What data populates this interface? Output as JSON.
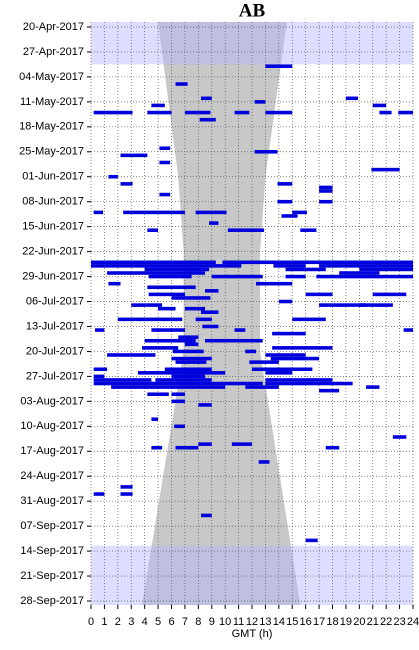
{
  "chart_data": {
    "type": "actogram",
    "title": "AB",
    "xlabel": "GMT (h)",
    "xlim": [
      0,
      24
    ],
    "xticks": [
      0,
      1,
      2,
      3,
      4,
      5,
      6,
      7,
      8,
      9,
      10,
      11,
      12,
      13,
      14,
      15,
      16,
      17,
      18,
      19,
      20,
      21,
      22,
      23,
      24
    ],
    "ylim": [
      "20-Apr-2017",
      "28-Sep-2017"
    ],
    "yticks": [
      "20-Apr-2017",
      "27-Apr-2017",
      "04-May-2017",
      "11-May-2017",
      "18-May-2017",
      "25-May-2017",
      "01-Jun-2017",
      "08-Jun-2017",
      "15-Jun-2017",
      "22-Jun-2017",
      "29-Jun-2017",
      "06-Jul-2017",
      "13-Jul-2017",
      "20-Jul-2017",
      "27-Jul-2017",
      "03-Aug-2017",
      "10-Aug-2017",
      "17-Aug-2017",
      "24-Aug-2017",
      "31-Aug-2017",
      "07-Sep-2017",
      "14-Sep-2017",
      "21-Sep-2017",
      "28-Sep-2017"
    ],
    "grid": true,
    "color": "#0000dd",
    "shade": {
      "color": "#c8c8c8",
      "dates": [
        "20-Apr-2017",
        "01-Jun-2017",
        "22-Jun-2017",
        "20-Jul-2017",
        "28-Sep-2017"
      ],
      "start": [
        5.0,
        6.5,
        6.9,
        6.9,
        3.8
      ],
      "end": [
        14.6,
        13.0,
        12.6,
        12.6,
        15.6
      ]
    },
    "bands": {
      "color": "#b4b4ff",
      "from": [
        "20-Apr-2017",
        "13-Sep-2017"
      ],
      "to": [
        "30-Apr-2017",
        "28-Sep-2017"
      ]
    },
    "events": [
      {
        "date": "01-May-2017",
        "start": 13.0,
        "end": 15.0
      },
      {
        "date": "06-May-2017",
        "start": 6.3,
        "end": 7.2
      },
      {
        "date": "10-May-2017",
        "start": 8.2,
        "end": 9.0
      },
      {
        "date": "10-May-2017",
        "start": 19.0,
        "end": 19.9
      },
      {
        "date": "11-May-2017",
        "start": 12.2,
        "end": 13.0
      },
      {
        "date": "12-May-2017",
        "start": 4.5,
        "end": 5.5
      },
      {
        "date": "12-May-2017",
        "start": 21.0,
        "end": 22.0
      },
      {
        "date": "14-May-2017",
        "start": 0.2,
        "end": 3.1
      },
      {
        "date": "14-May-2017",
        "start": 4.2,
        "end": 6.0
      },
      {
        "date": "14-May-2017",
        "start": 7.0,
        "end": 8.9
      },
      {
        "date": "14-May-2017",
        "start": 10.7,
        "end": 11.8
      },
      {
        "date": "14-May-2017",
        "start": 13.0,
        "end": 15.0
      },
      {
        "date": "14-May-2017",
        "start": 21.5,
        "end": 22.4
      },
      {
        "date": "14-May-2017",
        "start": 22.9,
        "end": 24.0
      },
      {
        "date": "16-May-2017",
        "start": 8.1,
        "end": 9.3
      },
      {
        "date": "24-May-2017",
        "start": 5.1,
        "end": 5.9
      },
      {
        "date": "25-May-2017",
        "start": 12.2,
        "end": 13.9
      },
      {
        "date": "26-May-2017",
        "start": 2.2,
        "end": 4.2
      },
      {
        "date": "28-May-2017",
        "start": 5.1,
        "end": 5.9
      },
      {
        "date": "30-May-2017",
        "start": 20.9,
        "end": 23.0
      },
      {
        "date": "01-Jun-2017",
        "start": 1.3,
        "end": 2.0
      },
      {
        "date": "03-Jun-2017",
        "start": 2.2,
        "end": 3.1
      },
      {
        "date": "03-Jun-2017",
        "start": 13.9,
        "end": 15.0
      },
      {
        "date": "04-Jun-2017",
        "start": 17.0,
        "end": 18.0
      },
      {
        "date": "05-Jun-2017",
        "start": 17.0,
        "end": 18.0
      },
      {
        "date": "06-Jun-2017",
        "start": 5.1,
        "end": 5.9
      },
      {
        "date": "08-Jun-2017",
        "start": 13.9,
        "end": 15.0
      },
      {
        "date": "08-Jun-2017",
        "start": 17.0,
        "end": 18.0
      },
      {
        "date": "11-Jun-2017",
        "start": 0.2,
        "end": 0.9
      },
      {
        "date": "11-Jun-2017",
        "start": 2.4,
        "end": 7.0
      },
      {
        "date": "11-Jun-2017",
        "start": 7.8,
        "end": 10.1
      },
      {
        "date": "11-Jun-2017",
        "start": 15.0,
        "end": 16.1
      },
      {
        "date": "12-Jun-2017",
        "start": 14.2,
        "end": 15.4
      },
      {
        "date": "14-Jun-2017",
        "start": 8.8,
        "end": 9.5
      },
      {
        "date": "16-Jun-2017",
        "start": 4.2,
        "end": 5.0
      },
      {
        "date": "16-Jun-2017",
        "start": 10.2,
        "end": 12.9
      },
      {
        "date": "16-Jun-2017",
        "start": 15.6,
        "end": 16.8
      },
      {
        "date": "25-Jun-2017",
        "start": 0.0,
        "end": 9.3
      },
      {
        "date": "25-Jun-2017",
        "start": 9.8,
        "end": 24.0
      },
      {
        "date": "26-Jun-2017",
        "start": 0.0,
        "end": 11.2
      },
      {
        "date": "26-Jun-2017",
        "start": 13.6,
        "end": 16.0
      },
      {
        "date": "26-Jun-2017",
        "start": 17.0,
        "end": 24.0
      },
      {
        "date": "27-Jun-2017",
        "start": 4.0,
        "end": 8.8
      },
      {
        "date": "27-Jun-2017",
        "start": 14.5,
        "end": 17.5
      },
      {
        "date": "27-Jun-2017",
        "start": 20.0,
        "end": 24.0
      },
      {
        "date": "28-Jun-2017",
        "start": 1.2,
        "end": 8.5
      },
      {
        "date": "28-Jun-2017",
        "start": 18.5,
        "end": 21.5
      },
      {
        "date": "29-Jun-2017",
        "start": 4.3,
        "end": 7.5
      },
      {
        "date": "29-Jun-2017",
        "start": 9.0,
        "end": 12.8
      },
      {
        "date": "29-Jun-2017",
        "start": 14.5,
        "end": 16.0
      },
      {
        "date": "29-Jun-2017",
        "start": 16.8,
        "end": 24.0
      },
      {
        "date": "01-Jul-2017",
        "start": 1.3,
        "end": 2.2
      },
      {
        "date": "01-Jul-2017",
        "start": 12.3,
        "end": 15.0
      },
      {
        "date": "02-Jul-2017",
        "start": 4.2,
        "end": 7.8
      },
      {
        "date": "03-Jul-2017",
        "start": 8.5,
        "end": 9.5
      },
      {
        "date": "04-Jul-2017",
        "start": 4.3,
        "end": 7.0
      },
      {
        "date": "04-Jul-2017",
        "start": 16.0,
        "end": 18.0
      },
      {
        "date": "04-Jul-2017",
        "start": 21.0,
        "end": 23.5
      },
      {
        "date": "05-Jul-2017",
        "start": 6.0,
        "end": 8.9
      },
      {
        "date": "06-Jul-2017",
        "start": 14.0,
        "end": 15.0
      },
      {
        "date": "07-Jul-2017",
        "start": 3.0,
        "end": 5.3
      },
      {
        "date": "07-Jul-2017",
        "start": 17.0,
        "end": 20.5
      },
      {
        "date": "07-Jul-2017",
        "start": 20.0,
        "end": 22.5
      },
      {
        "date": "08-Jul-2017",
        "start": 5.0,
        "end": 6.3
      },
      {
        "date": "08-Jul-2017",
        "start": 7.0,
        "end": 8.5
      },
      {
        "date": "09-Jul-2017",
        "start": 8.2,
        "end": 9.5
      },
      {
        "date": "11-Jul-2017",
        "start": 2.0,
        "end": 6.8
      },
      {
        "date": "11-Jul-2017",
        "start": 7.8,
        "end": 9.0
      },
      {
        "date": "11-Jul-2017",
        "start": 15.0,
        "end": 17.5
      },
      {
        "date": "13-Jul-2017",
        "start": 8.3,
        "end": 9.5
      },
      {
        "date": "14-Jul-2017",
        "start": 0.3,
        "end": 1.0
      },
      {
        "date": "14-Jul-2017",
        "start": 4.5,
        "end": 7.0
      },
      {
        "date": "14-Jul-2017",
        "start": 10.7,
        "end": 11.5
      },
      {
        "date": "14-Jul-2017",
        "start": 23.3,
        "end": 24.0
      },
      {
        "date": "15-Jul-2017",
        "start": 13.5,
        "end": 16.0
      },
      {
        "date": "16-Jul-2017",
        "start": 6.5,
        "end": 8.0
      },
      {
        "date": "17-Jul-2017",
        "start": 4.0,
        "end": 7.8
      },
      {
        "date": "17-Jul-2017",
        "start": 8.5,
        "end": 12.8
      },
      {
        "date": "18-Jul-2017",
        "start": 7.0,
        "end": 8.0
      },
      {
        "date": "19-Jul-2017",
        "start": 3.8,
        "end": 6.5
      },
      {
        "date": "19-Jul-2017",
        "start": 13.5,
        "end": 18.0
      },
      {
        "date": "20-Jul-2017",
        "start": 6.1,
        "end": 8.4
      },
      {
        "date": "20-Jul-2017",
        "start": 11.5,
        "end": 12.3
      },
      {
        "date": "21-Jul-2017",
        "start": 1.2,
        "end": 4.8
      },
      {
        "date": "21-Jul-2017",
        "start": 13.0,
        "end": 16.0
      },
      {
        "date": "22-Jul-2017",
        "start": 6.0,
        "end": 9.0
      },
      {
        "date": "22-Jul-2017",
        "start": 13.4,
        "end": 17.0
      },
      {
        "date": "23-Jul-2017",
        "start": 6.3,
        "end": 8.6
      },
      {
        "date": "23-Jul-2017",
        "start": 11.8,
        "end": 14.0
      },
      {
        "date": "25-Jul-2017",
        "start": 0.2,
        "end": 1.2
      },
      {
        "date": "25-Jul-2017",
        "start": 5.5,
        "end": 9.0
      },
      {
        "date": "25-Jul-2017",
        "start": 12.0,
        "end": 16.5
      },
      {
        "date": "26-Jul-2017",
        "start": 3.5,
        "end": 10.0
      },
      {
        "date": "26-Jul-2017",
        "start": 13.0,
        "end": 15.0
      },
      {
        "date": "27-Jul-2017",
        "start": 0.2,
        "end": 1.0
      },
      {
        "date": "27-Jul-2017",
        "start": 6.0,
        "end": 8.5
      },
      {
        "date": "28-Jul-2017",
        "start": 0.2,
        "end": 4.5
      },
      {
        "date": "28-Jul-2017",
        "start": 4.8,
        "end": 9.0
      },
      {
        "date": "28-Jul-2017",
        "start": 13.0,
        "end": 18.0
      },
      {
        "date": "29-Jul-2017",
        "start": 0.2,
        "end": 12.8
      },
      {
        "date": "29-Jul-2017",
        "start": 13.0,
        "end": 19.5
      },
      {
        "date": "30-Jul-2017",
        "start": 1.5,
        "end": 10.0
      },
      {
        "date": "30-Jul-2017",
        "start": 11.5,
        "end": 14.0
      },
      {
        "date": "30-Jul-2017",
        "start": 20.5,
        "end": 21.5
      },
      {
        "date": "31-Jul-2017",
        "start": 17.0,
        "end": 18.5
      },
      {
        "date": "01-Aug-2017",
        "start": 4.2,
        "end": 5.8
      },
      {
        "date": "01-Aug-2017",
        "start": 6.0,
        "end": 7.0
      },
      {
        "date": "03-Aug-2017",
        "start": 6.0,
        "end": 7.0
      },
      {
        "date": "04-Aug-2017",
        "start": 8.0,
        "end": 9.0
      },
      {
        "date": "08-Aug-2017",
        "start": 4.5,
        "end": 5.0
      },
      {
        "date": "10-Aug-2017",
        "start": 6.2,
        "end": 7.0
      },
      {
        "date": "13-Aug-2017",
        "start": 22.5,
        "end": 23.5
      },
      {
        "date": "15-Aug-2017",
        "start": 8.0,
        "end": 9.0
      },
      {
        "date": "15-Aug-2017",
        "start": 10.5,
        "end": 12.0
      },
      {
        "date": "16-Aug-2017",
        "start": 4.5,
        "end": 5.3
      },
      {
        "date": "16-Aug-2017",
        "start": 6.3,
        "end": 8.0
      },
      {
        "date": "16-Aug-2017",
        "start": 17.5,
        "end": 18.5
      },
      {
        "date": "20-Aug-2017",
        "start": 12.5,
        "end": 13.3
      },
      {
        "date": "27-Aug-2017",
        "start": 2.2,
        "end": 3.1
      },
      {
        "date": "29-Aug-2017",
        "start": 0.2,
        "end": 1.0
      },
      {
        "date": "29-Aug-2017",
        "start": 2.2,
        "end": 3.1
      },
      {
        "date": "04-Sep-2017",
        "start": 8.2,
        "end": 9.0
      },
      {
        "date": "11-Sep-2017",
        "start": 16.0,
        "end": 16.9
      }
    ]
  }
}
